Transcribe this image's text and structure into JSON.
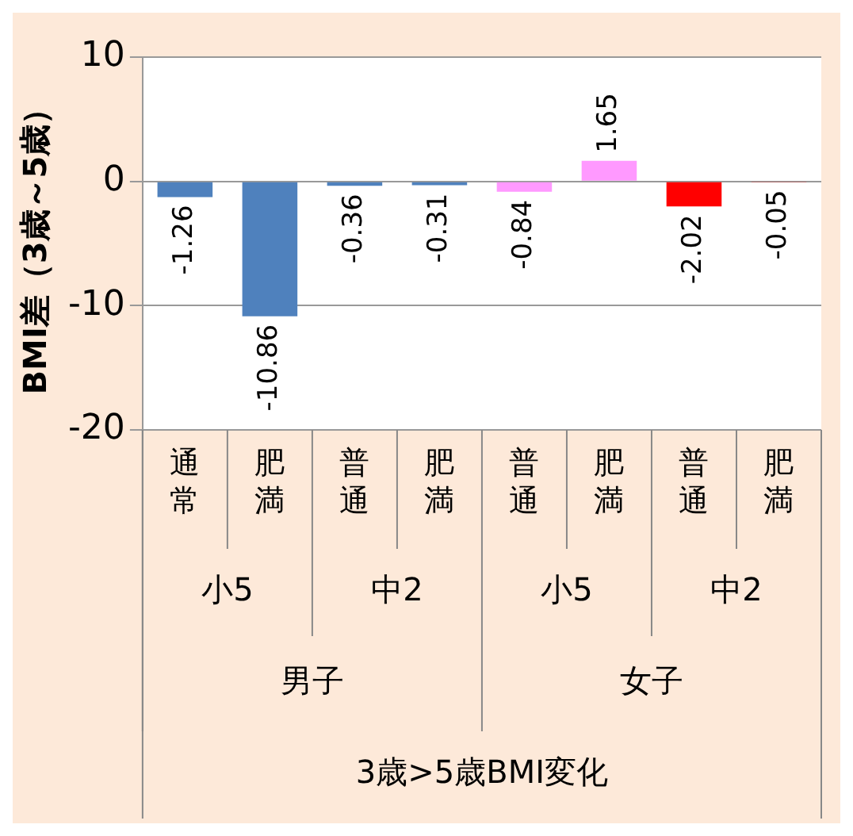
{
  "chart_data": {
    "type": "bar",
    "ylabel": "BMI差（3歳～5歳）",
    "categories": [
      "通常",
      "肥満",
      "普通",
      "肥満",
      "普通",
      "肥満",
      "普通",
      "肥満"
    ],
    "values": [
      -1.26,
      -10.86,
      -0.36,
      -0.31,
      -0.84,
      1.65,
      -2.02,
      -0.05
    ],
    "colors": [
      "#4f81bd",
      "#4f81bd",
      "#4f81bd",
      "#4f81bd",
      "#ff99ff",
      "#ff99ff",
      "#ff0000",
      "#ff0000"
    ],
    "ylim": [
      -20,
      10
    ],
    "yticks": [
      -20,
      -10,
      0,
      10
    ],
    "grid": "y",
    "data_labels": true,
    "annotations": [
      "小5",
      "中2",
      "小5",
      "中2",
      "男子",
      "女子",
      "3歳>5歳BMI変化"
    ]
  }
}
